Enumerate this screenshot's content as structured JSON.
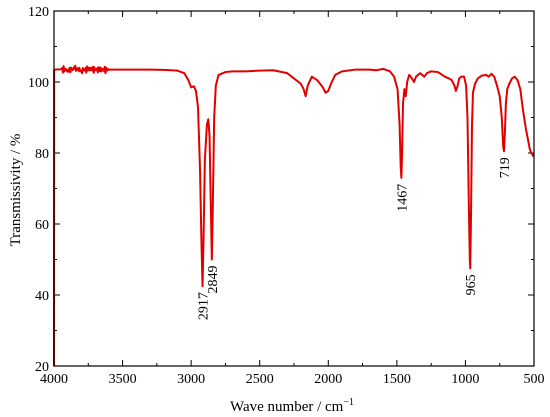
{
  "chart_data": {
    "type": "line",
    "title": "",
    "xlabel": "Wave number / cm",
    "xlabel_superscript": "−1",
    "ylabel": "Transmissivity / %",
    "xlim": [
      4000,
      500
    ],
    "ylim": [
      20,
      120
    ],
    "x_reversed": true,
    "xticks": [
      4000,
      3500,
      3000,
      2500,
      2000,
      1500,
      1000,
      500
    ],
    "yticks": [
      20,
      40,
      60,
      80,
      100,
      120
    ],
    "xtick_labels": [
      "4000",
      "3500",
      "3000",
      "2500",
      "2000",
      "1500",
      "1000",
      "500"
    ],
    "ytick_labels": [
      "20",
      "40",
      "60",
      "80",
      "100",
      "120"
    ],
    "grid": false,
    "line_color": "#e00000",
    "series": [
      {
        "points": [
          [
            4000,
            20
          ],
          [
            3999,
            103.5
          ],
          [
            3950,
            103.6
          ],
          [
            3900,
            103.4
          ],
          [
            3850,
            103.7
          ],
          [
            3800,
            103.3
          ],
          [
            3750,
            103.6
          ],
          [
            3700,
            103.5
          ],
          [
            3650,
            103.4
          ],
          [
            3600,
            103.5
          ],
          [
            3500,
            103.5
          ],
          [
            3400,
            103.5
          ],
          [
            3300,
            103.5
          ],
          [
            3200,
            103.4
          ],
          [
            3100,
            103.2
          ],
          [
            3050,
            102.5
          ],
          [
            3020,
            100.5
          ],
          [
            3000,
            98.5
          ],
          [
            2980,
            98.8
          ],
          [
            2965,
            97.5
          ],
          [
            2950,
            93
          ],
          [
            2935,
            75
          ],
          [
            2925,
            55
          ],
          [
            2917,
            42.5
          ],
          [
            2910,
            55
          ],
          [
            2900,
            78
          ],
          [
            2885,
            88
          ],
          [
            2875,
            89.5
          ],
          [
            2866,
            85
          ],
          [
            2858,
            68
          ],
          [
            2849,
            50
          ],
          [
            2842,
            65
          ],
          [
            2832,
            90
          ],
          [
            2820,
            99
          ],
          [
            2800,
            102
          ],
          [
            2750,
            102.8
          ],
          [
            2700,
            103
          ],
          [
            2600,
            103
          ],
          [
            2500,
            103.2
          ],
          [
            2400,
            103.3
          ],
          [
            2300,
            102.5
          ],
          [
            2250,
            101
          ],
          [
            2200,
            99.5
          ],
          [
            2180,
            98
          ],
          [
            2165,
            96
          ],
          [
            2150,
            99
          ],
          [
            2120,
            101.5
          ],
          [
            2080,
            100.5
          ],
          [
            2040,
            98.5
          ],
          [
            2020,
            97
          ],
          [
            2000,
            97.5
          ],
          [
            1980,
            99.5
          ],
          [
            1950,
            102
          ],
          [
            1900,
            103
          ],
          [
            1800,
            103.5
          ],
          [
            1700,
            103.5
          ],
          [
            1650,
            103.3
          ],
          [
            1600,
            103.7
          ],
          [
            1550,
            103
          ],
          [
            1520,
            101.5
          ],
          [
            1495,
            98
          ],
          [
            1480,
            88
          ],
          [
            1472,
            76
          ],
          [
            1467,
            73
          ],
          [
            1462,
            80
          ],
          [
            1455,
            94
          ],
          [
            1445,
            98
          ],
          [
            1435,
            96
          ],
          [
            1425,
            100
          ],
          [
            1410,
            102
          ],
          [
            1390,
            101
          ],
          [
            1375,
            100
          ],
          [
            1360,
            101.5
          ],
          [
            1330,
            102.5
          ],
          [
            1300,
            101.5
          ],
          [
            1280,
            102.5
          ],
          [
            1250,
            103
          ],
          [
            1200,
            102.8
          ],
          [
            1150,
            101.5
          ],
          [
            1120,
            101
          ],
          [
            1100,
            100.5
          ],
          [
            1080,
            99
          ],
          [
            1070,
            97.5
          ],
          [
            1060,
            98.5
          ],
          [
            1045,
            101
          ],
          [
            1030,
            101.5
          ],
          [
            1010,
            101.5
          ],
          [
            995,
            99
          ],
          [
            985,
            90
          ],
          [
            975,
            65
          ],
          [
            968,
            50
          ],
          [
            965,
            47.5
          ],
          [
            960,
            60
          ],
          [
            952,
            88
          ],
          [
            945,
            97
          ],
          [
            930,
            99.5
          ],
          [
            910,
            101
          ],
          [
            880,
            101.8
          ],
          [
            850,
            102
          ],
          [
            830,
            101.5
          ],
          [
            810,
            102.3
          ],
          [
            790,
            101.5
          ],
          [
            770,
            99
          ],
          [
            750,
            96
          ],
          [
            735,
            90
          ],
          [
            725,
            82
          ],
          [
            719,
            80.5
          ],
          [
            712,
            86
          ],
          [
            705,
            94
          ],
          [
            695,
            98
          ],
          [
            680,
            99.5
          ],
          [
            660,
            101
          ],
          [
            640,
            101.5
          ],
          [
            620,
            100.5
          ],
          [
            600,
            98
          ],
          [
            580,
            92
          ],
          [
            560,
            87
          ],
          [
            545,
            84
          ],
          [
            530,
            81
          ],
          [
            520,
            80
          ],
          [
            510,
            79.5
          ],
          [
            505,
            79
          ]
        ]
      }
    ],
    "annotations": [
      {
        "label": "2917",
        "x": 2917,
        "y": 42.5
      },
      {
        "label": "2849",
        "x": 2849,
        "y": 50
      },
      {
        "label": "1467",
        "x": 1467,
        "y": 73
      },
      {
        "label": "965",
        "x": 965,
        "y": 47.5
      },
      {
        "label": "719",
        "x": 719,
        "y": 80.5
      }
    ]
  }
}
